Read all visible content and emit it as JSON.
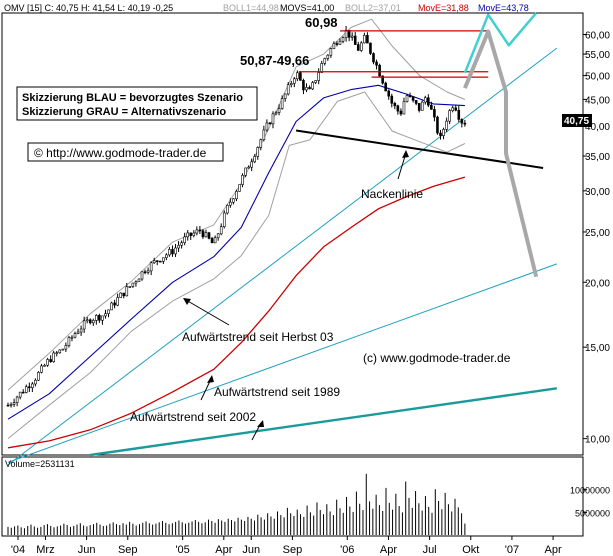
{
  "header": {
    "ticker": "OMV [15] C: 40,75 H: 41,54 L: 40,19 -0,25",
    "boll1": "BOLL1=44,98",
    "movs": "MOVS=41,00",
    "boll2": "BOLL2=37,01",
    "move_red": "MovE=31,88",
    "move_blue": "MovE=43,78"
  },
  "colors": {
    "price": "#000000",
    "bollinger": "#a0a0a0",
    "ma_red": "#cc0000",
    "ma_blue": "#0000aa",
    "trend_cyan": "#1fa0c0",
    "trend_2002": "#1a9a9a",
    "resistance": "#cc0000",
    "neckline": "#000000",
    "scenario_grey": "#a8a8a8",
    "scenario_cyan": "#40d0d0",
    "price_badge_bg": "#000000",
    "volume": "#000000"
  },
  "chart_data": [
    {
      "type": "candlestick",
      "title": "",
      "y_scale": "log",
      "ylim": [
        9.3,
        66
      ],
      "y_ticks": [
        10,
        15,
        20,
        25,
        30,
        35,
        40,
        45,
        50,
        55,
        60
      ],
      "y_tick_labels": [
        "10,00",
        "15,00",
        "20,00",
        "25,00",
        "30,00",
        "35,00",
        "40,00",
        "45,00",
        "50,00",
        "55,00",
        "60,00"
      ],
      "x_labels": [
        "'04",
        "Mrz",
        "Jun",
        "Sep",
        "'05",
        "Apr",
        "Jun",
        "Sep",
        "'06",
        "Apr",
        "Jul",
        "Okt",
        "'07",
        "Apr"
      ],
      "x_label_months": [
        0,
        2,
        5,
        8,
        12,
        15,
        17,
        20,
        24,
        27,
        30,
        33,
        36,
        39
      ],
      "last_price_label": "40,75",
      "price_path": [
        [
          0,
          11.6
        ],
        [
          1,
          12.3
        ],
        [
          2,
          13.1
        ],
        [
          3,
          14.2
        ],
        [
          4,
          14.9
        ],
        [
          5,
          16.1
        ],
        [
          6,
          17.0
        ],
        [
          7,
          17.3
        ],
        [
          8,
          18.6
        ],
        [
          9,
          19.8
        ],
        [
          10,
          21.2
        ],
        [
          11,
          22.2
        ],
        [
          12,
          23.0
        ],
        [
          13,
          24.4
        ],
        [
          14,
          25.2
        ],
        [
          15,
          23.6
        ],
        [
          16,
          27.9
        ],
        [
          17,
          31.5
        ],
        [
          18,
          35.6
        ],
        [
          19,
          40.6
        ],
        [
          20,
          44.8
        ],
        [
          21,
          50.8
        ],
        [
          21.5,
          47.6
        ],
        [
          22,
          46.5
        ],
        [
          23,
          53.6
        ],
        [
          24,
          58.6
        ],
        [
          24.7,
          60.98
        ],
        [
          25.5,
          56.1
        ],
        [
          26,
          59.0
        ],
        [
          27,
          51.3
        ],
        [
          28,
          44.1
        ],
        [
          28.6,
          42.2
        ],
        [
          29,
          46.0
        ],
        [
          30,
          43.1
        ],
        [
          30.5,
          45.8
        ],
        [
          31,
          41.6
        ],
        [
          31.5,
          37.6
        ],
        [
          32,
          41.6
        ],
        [
          32.5,
          44.5
        ],
        [
          33,
          40.9
        ],
        [
          33.3,
          40.75
        ]
      ],
      "series": [
        {
          "name": "MovE=43,78",
          "values": [
            [
              0,
              10.9
            ],
            [
              3,
              12.2
            ],
            [
              6,
              14.4
            ],
            [
              9,
              17.0
            ],
            [
              12,
              20.0
            ],
            [
              15,
              22.4
            ],
            [
              17,
              25.5
            ],
            [
              19,
              32.5
            ],
            [
              21,
              40.8
            ],
            [
              23,
              45.3
            ],
            [
              25,
              47.0
            ],
            [
              27,
              47.9
            ],
            [
              29,
              46.1
            ],
            [
              31,
              44.1
            ],
            [
              33.3,
              43.78
            ]
          ]
        },
        {
          "name": "MovE=31,88",
          "values": [
            [
              0,
              9.6
            ],
            [
              3,
              9.9
            ],
            [
              6,
              10.4
            ],
            [
              9,
              11.2
            ],
            [
              12,
              12.3
            ],
            [
              15,
              13.6
            ],
            [
              17,
              15.3
            ],
            [
              19,
              17.6
            ],
            [
              21,
              20.6
            ],
            [
              23,
              23.4
            ],
            [
              25,
              25.5
            ],
            [
              27,
              27.7
            ],
            [
              29,
              29.2
            ],
            [
              31,
              30.6
            ],
            [
              33.3,
              31.88
            ]
          ]
        }
      ],
      "bollinger_upper": [
        [
          0,
          12.4
        ],
        [
          3,
          14.6
        ],
        [
          6,
          17.4
        ],
        [
          9,
          20.1
        ],
        [
          12,
          23.9
        ],
        [
          15,
          25.8
        ],
        [
          17,
          31.0
        ],
        [
          19,
          39.5
        ],
        [
          21,
          52.0
        ],
        [
          23,
          55.0
        ],
        [
          25,
          61.9
        ],
        [
          26.5,
          64.2
        ],
        [
          28,
          57.0
        ],
        [
          30,
          50.0
        ],
        [
          32,
          46.5
        ],
        [
          33.3,
          44.98
        ]
      ],
      "bollinger_lower": [
        [
          0,
          10.0
        ],
        [
          3,
          11.6
        ],
        [
          6,
          13.4
        ],
        [
          9,
          16.1
        ],
        [
          12,
          18.4
        ],
        [
          15,
          20.3
        ],
        [
          17,
          22.5
        ],
        [
          19,
          26.9
        ],
        [
          20.5,
          36.7
        ],
        [
          22,
          37.6
        ],
        [
          24,
          44.6
        ],
        [
          26,
          46.5
        ],
        [
          28,
          39.1
        ],
        [
          30,
          37.3
        ],
        [
          32,
          35.6
        ],
        [
          33.3,
          37.01
        ]
      ],
      "resistance_levels": [
        {
          "value": 60.98,
          "label": "60,98"
        },
        {
          "value": 50.87,
          "label": "50,87-49,66"
        },
        {
          "value": 49.66
        }
      ],
      "neckline": [
        [
          21,
          39.2
        ],
        [
          39,
          33.2
        ]
      ],
      "trendlines": [
        {
          "label": "Aufwärtstrend seit Herbst 03",
          "points": [
            [
              0,
              8.9
            ],
            [
              40,
              56.5
            ]
          ]
        },
        {
          "label": "Aufwärtstrend seit 1989",
          "points": [
            [
              0,
              9.0
            ],
            [
              40,
              21.7
            ]
          ]
        },
        {
          "label": "Aufwärtstrend seit 2002",
          "points": [
            [
              6,
              9.3
            ],
            [
              40,
              12.5
            ]
          ]
        }
      ],
      "scenario_blue": [
        [
          33.3,
          50.6
        ],
        [
          35,
          65.5
        ],
        [
          36.5,
          57.2
        ],
        [
          38.5,
          66.0
        ]
      ],
      "scenario_grey": [
        [
          33.3,
          47.3
        ],
        [
          35,
          60.8
        ],
        [
          36.3,
          46.5
        ],
        [
          36.3,
          35.4
        ],
        [
          38.5,
          20.5
        ]
      ],
      "annotations": {
        "level_high": "60,98",
        "level_resistance": "50,87-49,66",
        "scenario_blue_note": "Skizzierung BLAU = bevorzugtes Szenario",
        "scenario_grey_note": "Skizzierung GRAU = Alternativszenario",
        "copyright_top": "© http://www.godmode-trader.de",
        "neckline": "Nackenlinie",
        "trend_autumn03": "Aufwärtstrend seit Herbst 03",
        "trend_1989": "Aufwärtstrend seit 1989",
        "trend_2002": "Aufwärtstrend seit 2002",
        "copyright_mid": "(c) www.godmode-trader.de"
      }
    },
    {
      "type": "bar",
      "title": "Volume=2531131",
      "ylim": [
        0,
        17000000
      ],
      "y_ticks": [
        5000000,
        10000000
      ],
      "y_tick_labels": [
        "5000000",
        "10000000"
      ],
      "bar_count": 140,
      "values_millions": [
        1.8,
        1.6,
        1.9,
        2.1,
        1.7,
        1.5,
        2.0,
        2.3,
        1.9,
        1.6,
        1.8,
        2.2,
        2.4,
        2.0,
        1.7,
        1.9,
        2.1,
        2.5,
        2.2,
        1.8,
        2.0,
        2.3,
        2.6,
        2.1,
        1.9,
        2.2,
        2.4,
        2.7,
        2.3,
        2.0,
        2.1,
        2.5,
        2.8,
        2.4,
        2.2,
        2.6,
        2.3,
        2.9,
        2.5,
        2.1,
        2.4,
        2.7,
        3.0,
        2.6,
        2.3,
        2.5,
        2.8,
        3.1,
        2.7,
        2.4,
        2.6,
        2.9,
        3.2,
        2.8,
        2.5,
        2.7,
        3.0,
        3.3,
        2.9,
        2.6,
        2.8,
        3.4,
        3.1,
        2.7,
        3.5,
        3.2,
        2.9,
        3.6,
        3.3,
        3.0,
        3.8,
        3.4,
        3.1,
        4.0,
        3.6,
        3.2,
        4.5,
        3.9,
        3.4,
        4.8,
        4.1,
        3.6,
        5.2,
        4.4,
        3.9,
        6.0,
        4.8,
        4.2,
        5.6,
        4.6,
        4.0,
        6.5,
        5.0,
        4.3,
        7.2,
        5.5,
        4.6,
        6.8,
        5.2,
        4.4,
        7.8,
        5.9,
        4.9,
        8.4,
        6.3,
        5.1,
        9.6,
        6.9,
        5.5,
        13.5,
        7.4,
        5.8,
        8.9,
        6.6,
        5.3,
        10.4,
        7.1,
        5.6,
        9.1,
        6.4,
        5.0,
        11.8,
        8.2,
        6.0,
        9.7,
        7.0,
        5.4,
        8.6,
        6.2,
        4.9,
        10.1,
        7.5,
        5.7,
        9.3,
        6.8,
        5.2,
        8.0,
        6.1,
        4.8,
        2.53
      ]
    }
  ]
}
